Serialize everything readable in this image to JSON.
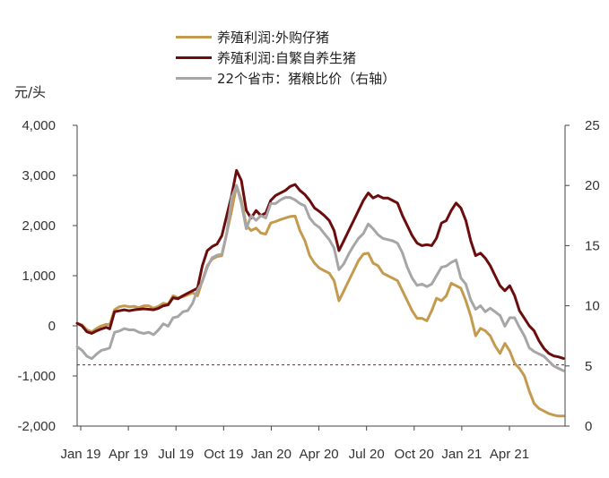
{
  "chart_data": {
    "type": "line",
    "unit_label": "元/头",
    "x_tick_labels": [
      "Jan 19",
      "Apr 19",
      "Jul 19",
      "Oct 19",
      "Jan 20",
      "Apr 20",
      "Jul 20",
      "Oct 20",
      "Jan 21",
      "Apr 21"
    ],
    "y_left_ticks": [
      "4,000",
      "3,000",
      "2,000",
      "1,000",
      "0",
      "-1,000",
      "-2,000"
    ],
    "y_left_values": [
      4000,
      3000,
      2000,
      1000,
      0,
      -1000,
      -2000
    ],
    "y_right_ticks": [
      "25",
      "20",
      "15",
      "10",
      "5",
      "0"
    ],
    "y_right_values": [
      25,
      20,
      15,
      10,
      5,
      0
    ],
    "ylim_left": [
      -2000,
      4000
    ],
    "ylim_right": [
      0,
      25
    ],
    "x_range": [
      0,
      30
    ],
    "dashed_reference_y_left": -780,
    "series": [
      {
        "name": "养殖利润:外购仔猪",
        "axis": "left",
        "color": "#c49a4f",
        "x": [
          0,
          0.3,
          0.6,
          0.9,
          1.2,
          1.5,
          1.8,
          2.0,
          2.3,
          2.6,
          2.9,
          3.2,
          3.5,
          3.8,
          4.1,
          4.4,
          4.7,
          5.0,
          5.3,
          5.6,
          5.9,
          6.2,
          6.5,
          6.8,
          7.1,
          7.4,
          7.7,
          8.0,
          8.3,
          8.6,
          8.9,
          9.2,
          9.5,
          9.8,
          10.1,
          10.4,
          10.7,
          11.0,
          11.3,
          11.6,
          11.9,
          12.2,
          12.5,
          12.8,
          13.1,
          13.4,
          13.7,
          14.0,
          14.3,
          14.6,
          14.9,
          15.2,
          15.5,
          15.8,
          16.1,
          16.4,
          16.7,
          17.0,
          17.3,
          17.6,
          17.9,
          18.2,
          18.5,
          18.8,
          19.1,
          19.4,
          19.7,
          20.0,
          20.3,
          20.6,
          20.9,
          21.2,
          21.5,
          21.8,
          22.1,
          22.4,
          22.7,
          23.0,
          23.3,
          23.6,
          23.9,
          24.2,
          24.5,
          24.8,
          25.1,
          25.4,
          25.7,
          26.0,
          26.3,
          26.6,
          26.9,
          27.2,
          27.5,
          27.8,
          28.1,
          28.4,
          28.7,
          29.0,
          29.3,
          29.6,
          29.9
        ],
        "y": [
          50,
          20,
          -80,
          -120,
          -50,
          0,
          30,
          20,
          320,
          380,
          400,
          380,
          390,
          360,
          400,
          400,
          350,
          390,
          450,
          430,
          600,
          560,
          580,
          620,
          660,
          600,
          900,
          1200,
          1330,
          1380,
          1400,
          1850,
          2300,
          2800,
          2500,
          2000,
          1900,
          1950,
          1850,
          1830,
          2050,
          2080,
          2120,
          2150,
          2180,
          2190,
          1900,
          1700,
          1400,
          1250,
          1150,
          1100,
          1050,
          900,
          500,
          700,
          900,
          1100,
          1300,
          1430,
          1450,
          1250,
          1200,
          1050,
          1000,
          950,
          900,
          700,
          500,
          300,
          150,
          150,
          100,
          300,
          550,
          500,
          600,
          850,
          800,
          750,
          500,
          200,
          -200,
          -50,
          -100,
          -200,
          -400,
          -550,
          -350,
          -500,
          -750,
          -850,
          -1000,
          -1300,
          -1550,
          -1650,
          -1700,
          -1750,
          -1780,
          -1800,
          -1800
        ]
      },
      {
        "name": "养殖利润:自繁自养生猪",
        "axis": "left",
        "color": "#6b0d0d",
        "x": [
          0,
          0.3,
          0.6,
          0.9,
          1.2,
          1.5,
          1.8,
          2.0,
          2.3,
          2.6,
          2.9,
          3.2,
          3.5,
          3.8,
          4.1,
          4.4,
          4.7,
          5.0,
          5.3,
          5.6,
          5.9,
          6.2,
          6.5,
          6.8,
          7.1,
          7.4,
          7.7,
          8.0,
          8.3,
          8.6,
          8.9,
          9.2,
          9.5,
          9.8,
          10.1,
          10.4,
          10.7,
          11.0,
          11.3,
          11.6,
          11.9,
          12.2,
          12.5,
          12.8,
          13.1,
          13.4,
          13.7,
          14.0,
          14.3,
          14.6,
          14.9,
          15.2,
          15.5,
          15.8,
          16.1,
          16.4,
          16.7,
          17.0,
          17.3,
          17.6,
          17.9,
          18.2,
          18.5,
          18.8,
          19.1,
          19.4,
          19.7,
          20.0,
          20.3,
          20.6,
          20.9,
          21.2,
          21.5,
          21.8,
          22.1,
          22.4,
          22.7,
          23.0,
          23.3,
          23.6,
          23.9,
          24.2,
          24.5,
          24.8,
          25.1,
          25.4,
          25.7,
          26.0,
          26.3,
          26.6,
          26.9,
          27.2,
          27.5,
          27.8,
          28.1,
          28.4,
          28.7,
          29.0,
          29.3,
          29.6,
          29.9
        ],
        "y": [
          50,
          0,
          -120,
          -150,
          -100,
          -60,
          -30,
          -60,
          280,
          300,
          320,
          300,
          320,
          330,
          340,
          330,
          320,
          350,
          400,
          420,
          560,
          540,
          600,
          650,
          700,
          750,
          1200,
          1500,
          1580,
          1630,
          1800,
          2200,
          2600,
          3100,
          2900,
          2300,
          2150,
          2300,
          2200,
          2250,
          2500,
          2600,
          2650,
          2700,
          2780,
          2820,
          2700,
          2620,
          2500,
          2350,
          2280,
          2200,
          2100,
          1900,
          1500,
          1700,
          1900,
          2100,
          2300,
          2500,
          2650,
          2550,
          2600,
          2550,
          2550,
          2500,
          2450,
          2200,
          2000,
          1800,
          1650,
          1600,
          1620,
          1600,
          1750,
          2050,
          2100,
          2300,
          2450,
          2350,
          2100,
          1700,
          1400,
          1450,
          1350,
          1200,
          1000,
          800,
          700,
          800,
          600,
          300,
          150,
          0,
          -100,
          -300,
          -450,
          -550,
          -600,
          -620,
          -650
        ]
      },
      {
        "name": "22个省市：猪粮比价（右轴）",
        "axis": "right",
        "color": "#a6a6a6",
        "x": [
          0,
          0.3,
          0.6,
          0.9,
          1.2,
          1.5,
          1.8,
          2.0,
          2.3,
          2.6,
          2.9,
          3.2,
          3.5,
          3.8,
          4.1,
          4.4,
          4.7,
          5.0,
          5.3,
          5.6,
          5.9,
          6.2,
          6.5,
          6.8,
          7.1,
          7.4,
          7.7,
          8.0,
          8.3,
          8.6,
          8.9,
          9.2,
          9.5,
          9.8,
          10.1,
          10.4,
          10.7,
          11.0,
          11.3,
          11.6,
          11.9,
          12.2,
          12.5,
          12.8,
          13.1,
          13.4,
          13.7,
          14.0,
          14.3,
          14.6,
          14.9,
          15.2,
          15.5,
          15.8,
          16.1,
          16.4,
          16.7,
          17.0,
          17.3,
          17.6,
          17.9,
          18.2,
          18.5,
          18.8,
          19.1,
          19.4,
          19.7,
          20.0,
          20.3,
          20.6,
          20.9,
          21.2,
          21.5,
          21.8,
          22.1,
          22.4,
          22.7,
          23.0,
          23.3,
          23.6,
          23.9,
          24.2,
          24.5,
          24.8,
          25.1,
          25.4,
          25.7,
          26.0,
          26.3,
          26.6,
          26.9,
          27.2,
          27.5,
          27.8,
          28.1,
          28.4,
          28.7,
          29.0,
          29.3,
          29.6,
          29.9
        ],
        "y": [
          6.6,
          6.3,
          5.8,
          5.6,
          6.0,
          6.3,
          6.4,
          6.5,
          7.8,
          7.9,
          8.1,
          8.0,
          8.0,
          7.8,
          7.7,
          7.8,
          7.6,
          8.0,
          8.5,
          8.3,
          9.0,
          9.1,
          9.5,
          9.6,
          10.2,
          11.3,
          12.0,
          13.2,
          14.0,
          14.2,
          14.3,
          16.0,
          19.0,
          20.0,
          18.5,
          16.4,
          17.5,
          17.1,
          17.5,
          17.3,
          18.5,
          18.5,
          18.8,
          19.0,
          19.0,
          18.8,
          18.5,
          18.3,
          17.3,
          16.8,
          16.5,
          16.0,
          15.5,
          14.8,
          13.0,
          13.5,
          14.3,
          15.0,
          15.6,
          16.0,
          16.8,
          16.4,
          15.9,
          15.6,
          15.5,
          15.4,
          15.2,
          14.4,
          13.2,
          12.3,
          11.7,
          11.8,
          11.6,
          11.8,
          12.5,
          13.2,
          13.3,
          13.6,
          13.8,
          12.3,
          11.8,
          10.5,
          9.7,
          10.0,
          9.5,
          9.8,
          9.5,
          9.2,
          8.3,
          9.0,
          9.0,
          8.2,
          7.5,
          6.5,
          6.2,
          6.0,
          5.8,
          5.4,
          5.0,
          4.8,
          4.6
        ]
      }
    ]
  }
}
